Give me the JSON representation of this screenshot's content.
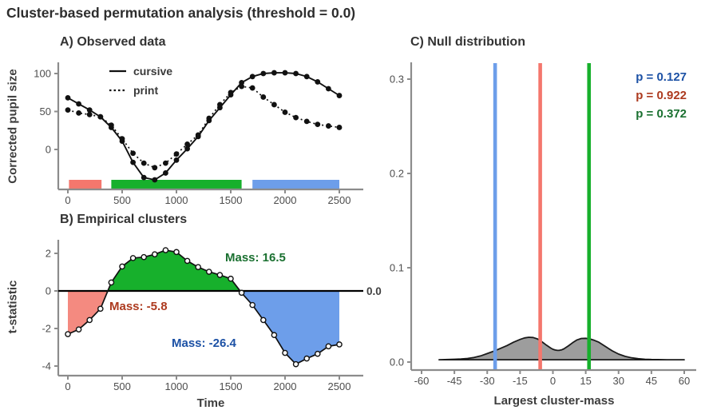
{
  "title": "Cluster-based permutation analysis (threshold = 0.0)",
  "palette": {
    "red": "#f4776d",
    "red_fill": "#f48a80",
    "green": "#17b02c",
    "blue": "#6d9eea",
    "dark_red": "#ad3a1f",
    "dark_green": "#1a7030",
    "dark_blue": "#1c51a5",
    "axis": "#8c8c8c",
    "tick_text": "#4d4d4d",
    "line": "#111111",
    "density_fill": "#9d9d9d",
    "density_stroke": "#1a1a1a"
  },
  "chart_data": [
    {
      "type": "line",
      "panel": "A",
      "title": "A) Observed data",
      "ylabel": "Corrected pupil size",
      "xlabel": "",
      "x": [
        0,
        100,
        200,
        300,
        400,
        500,
        600,
        700,
        800,
        900,
        1000,
        1100,
        1200,
        1300,
        1400,
        1500,
        1600,
        1700,
        1800,
        1900,
        2000,
        2100,
        2200,
        2300,
        2400,
        2500
      ],
      "series": [
        {
          "name": "cursive",
          "style": "solid",
          "values": [
            68,
            60,
            52,
            43,
            29,
            11,
            -17,
            -37,
            -40,
            -31,
            -14,
            1,
            17,
            38,
            55,
            72,
            88,
            96,
            100,
            101,
            101,
            100,
            96,
            89,
            80,
            71
          ]
        },
        {
          "name": "print",
          "style": "dashed",
          "values": [
            52,
            48,
            46,
            43,
            32,
            14,
            -5,
            -18,
            -24,
            -18,
            -6,
            7,
            19,
            41,
            59,
            75,
            83,
            81,
            69,
            59,
            49,
            42,
            37,
            33,
            31,
            29
          ]
        }
      ],
      "xticks": [
        {
          "v": 0,
          "label": "0"
        },
        {
          "v": 500,
          "label": "500"
        },
        {
          "v": 1000,
          "label": "1000"
        },
        {
          "v": 1500,
          "label": "1500"
        },
        {
          "v": 2000,
          "label": "2000"
        },
        {
          "v": 2500,
          "label": "2500"
        }
      ],
      "yticks": [
        {
          "v": 0,
          "label": "0"
        },
        {
          "v": 50,
          "label": "50"
        },
        {
          "v": 100,
          "label": "100"
        }
      ],
      "cluster_bars": [
        {
          "from": 10,
          "to": 310,
          "color": "red"
        },
        {
          "from": 400,
          "to": 1600,
          "color": "green"
        },
        {
          "from": 1700,
          "to": 2500,
          "color": "blue"
        }
      ],
      "legend": [
        "cursive",
        "print"
      ]
    },
    {
      "type": "line",
      "panel": "B",
      "title": "B) Empirical clusters",
      "ylabel": "t-statistic",
      "xlabel": "Time",
      "threshold": 0,
      "threshold_label": "0.0",
      "x": [
        0,
        100,
        200,
        300,
        400,
        500,
        600,
        700,
        800,
        900,
        1000,
        1100,
        1200,
        1300,
        1400,
        1500,
        1600,
        1700,
        1800,
        1900,
        2000,
        2100,
        2200,
        2300,
        2400,
        2500
      ],
      "values": [
        -2.3,
        -2.05,
        -1.55,
        -0.95,
        0.45,
        1.3,
        1.75,
        1.8,
        1.95,
        2.17,
        2.07,
        1.6,
        1.27,
        1.02,
        0.85,
        0.65,
        -0.1,
        -0.75,
        -1.55,
        -2.35,
        -3.3,
        -3.9,
        -3.6,
        -3.35,
        -2.95,
        -2.85
      ],
      "xticks": [
        {
          "v": 0,
          "label": "0"
        },
        {
          "v": 500,
          "label": "500"
        },
        {
          "v": 1000,
          "label": "1000"
        },
        {
          "v": 1500,
          "label": "1500"
        },
        {
          "v": 2000,
          "label": "2000"
        },
        {
          "v": 2500,
          "label": "2500"
        }
      ],
      "yticks": [
        {
          "v": -4,
          "label": "-4"
        },
        {
          "v": -2,
          "label": "-2"
        },
        {
          "v": 0,
          "label": "0"
        },
        {
          "v": 2,
          "label": "2"
        }
      ],
      "clusters": [
        {
          "color": "red",
          "mass": -5.8,
          "label": "Mass: -5.8"
        },
        {
          "color": "green",
          "mass": 16.5,
          "label": "Mass: 16.5"
        },
        {
          "color": "blue",
          "mass": -26.4,
          "label": "Mass: -26.4"
        }
      ]
    },
    {
      "type": "area",
      "panel": "C",
      "title": "C) Null distribution",
      "ylabel": "",
      "xlabel": "Largest cluster-mass",
      "density_x": [
        -52,
        -48,
        -45,
        -42,
        -39,
        -36,
        -33,
        -30,
        -27,
        -24,
        -21,
        -18,
        -15,
        -13,
        -11,
        -9,
        -7,
        -5,
        -3,
        -1,
        0,
        1,
        2,
        3,
        4,
        5,
        7,
        9,
        11,
        13,
        15,
        17,
        19,
        21,
        24,
        27,
        30,
        33,
        36,
        39,
        42,
        45,
        48,
        52,
        56,
        60
      ],
      "density_y": [
        0.0025,
        0.0027,
        0.003,
        0.0033,
        0.0038,
        0.0048,
        0.0065,
        0.009,
        0.0115,
        0.0145,
        0.0175,
        0.021,
        0.024,
        0.0256,
        0.0263,
        0.026,
        0.0245,
        0.0215,
        0.018,
        0.0148,
        0.0136,
        0.0128,
        0.0124,
        0.0125,
        0.013,
        0.014,
        0.017,
        0.0205,
        0.0235,
        0.025,
        0.0252,
        0.0245,
        0.023,
        0.021,
        0.0165,
        0.012,
        0.0085,
        0.006,
        0.0045,
        0.0036,
        0.003,
        0.0027,
        0.0026,
        0.0025,
        0.0025,
        0.0025
      ],
      "xticks": [
        {
          "v": -60,
          "label": "-60"
        },
        {
          "v": -45,
          "label": "-45"
        },
        {
          "v": -30,
          "label": "-30"
        },
        {
          "v": -15,
          "label": "-15"
        },
        {
          "v": 0,
          "label": "0"
        },
        {
          "v": 15,
          "label": "15"
        },
        {
          "v": 30,
          "label": "30"
        },
        {
          "v": 45,
          "label": "45"
        },
        {
          "v": 60,
          "label": "60"
        }
      ],
      "yticks": [
        {
          "v": 0,
          "label": "0.0"
        },
        {
          "v": 0.1,
          "label": "0.1"
        },
        {
          "v": 0.2,
          "label": "0.2"
        },
        {
          "v": 0.3,
          "label": "0.3"
        }
      ],
      "vlines": [
        {
          "x": -26.4,
          "color": "blue",
          "p": "p = 0.127"
        },
        {
          "x": -5.8,
          "color": "red",
          "p": "p = 0.922"
        },
        {
          "x": 16.5,
          "color": "green",
          "p": "p = 0.372"
        }
      ]
    }
  ]
}
